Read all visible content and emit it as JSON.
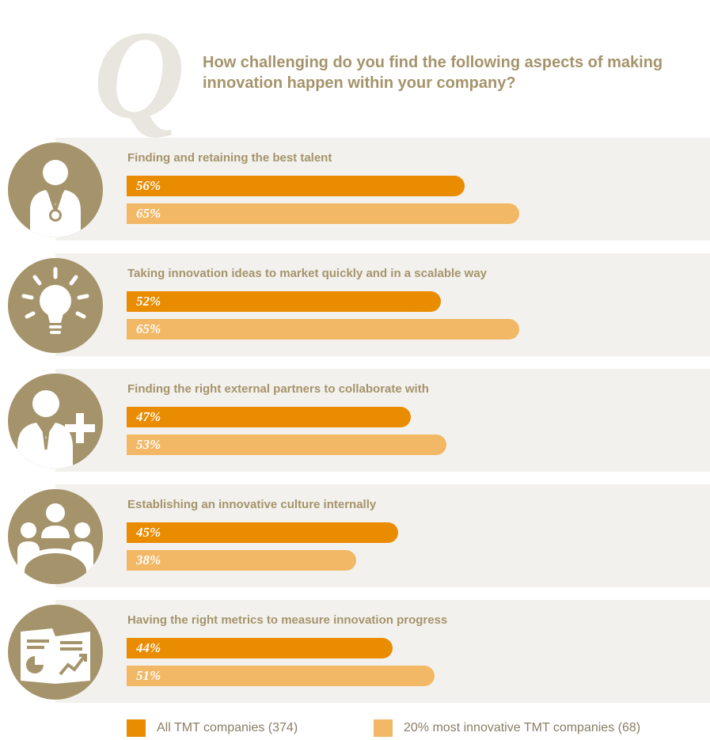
{
  "header": {
    "q_mark": "Q",
    "question": "How challenging do you find the following aspects of making innovation happen within your company?"
  },
  "colors": {
    "accent": "#a5946b",
    "all_tmt": "#e98c00",
    "most_innovative": "#f2b866",
    "panel": "#f3f1ed"
  },
  "chart_data": {
    "type": "bar",
    "orientation": "horizontal",
    "categories": [
      "Finding and retaining the best talent",
      "Taking innovation ideas to market quickly and in a scalable way",
      "Finding the right external partners to collaborate with",
      "Establishing an innovative culture internally",
      "Having the right metrics to measure innovation progress"
    ],
    "icons": [
      "person-medal-icon",
      "lightbulb-icon",
      "person-add-icon",
      "team-meeting-icon",
      "report-chart-icon"
    ],
    "series": [
      {
        "name": "All TMT companies (374)",
        "values": [
          56,
          52,
          47,
          45,
          44
        ],
        "labels": [
          "56%",
          "52%",
          "47%",
          "45%",
          "44%"
        ]
      },
      {
        "name": "20% most innovative TMT companies (68)",
        "values": [
          65,
          65,
          53,
          38,
          51
        ],
        "labels": [
          "65%",
          "65%",
          "53%",
          "38%",
          "51%"
        ]
      }
    ],
    "unit": "%",
    "xlim": [
      0,
      100
    ],
    "grid": false,
    "legend_position": "bottom"
  }
}
